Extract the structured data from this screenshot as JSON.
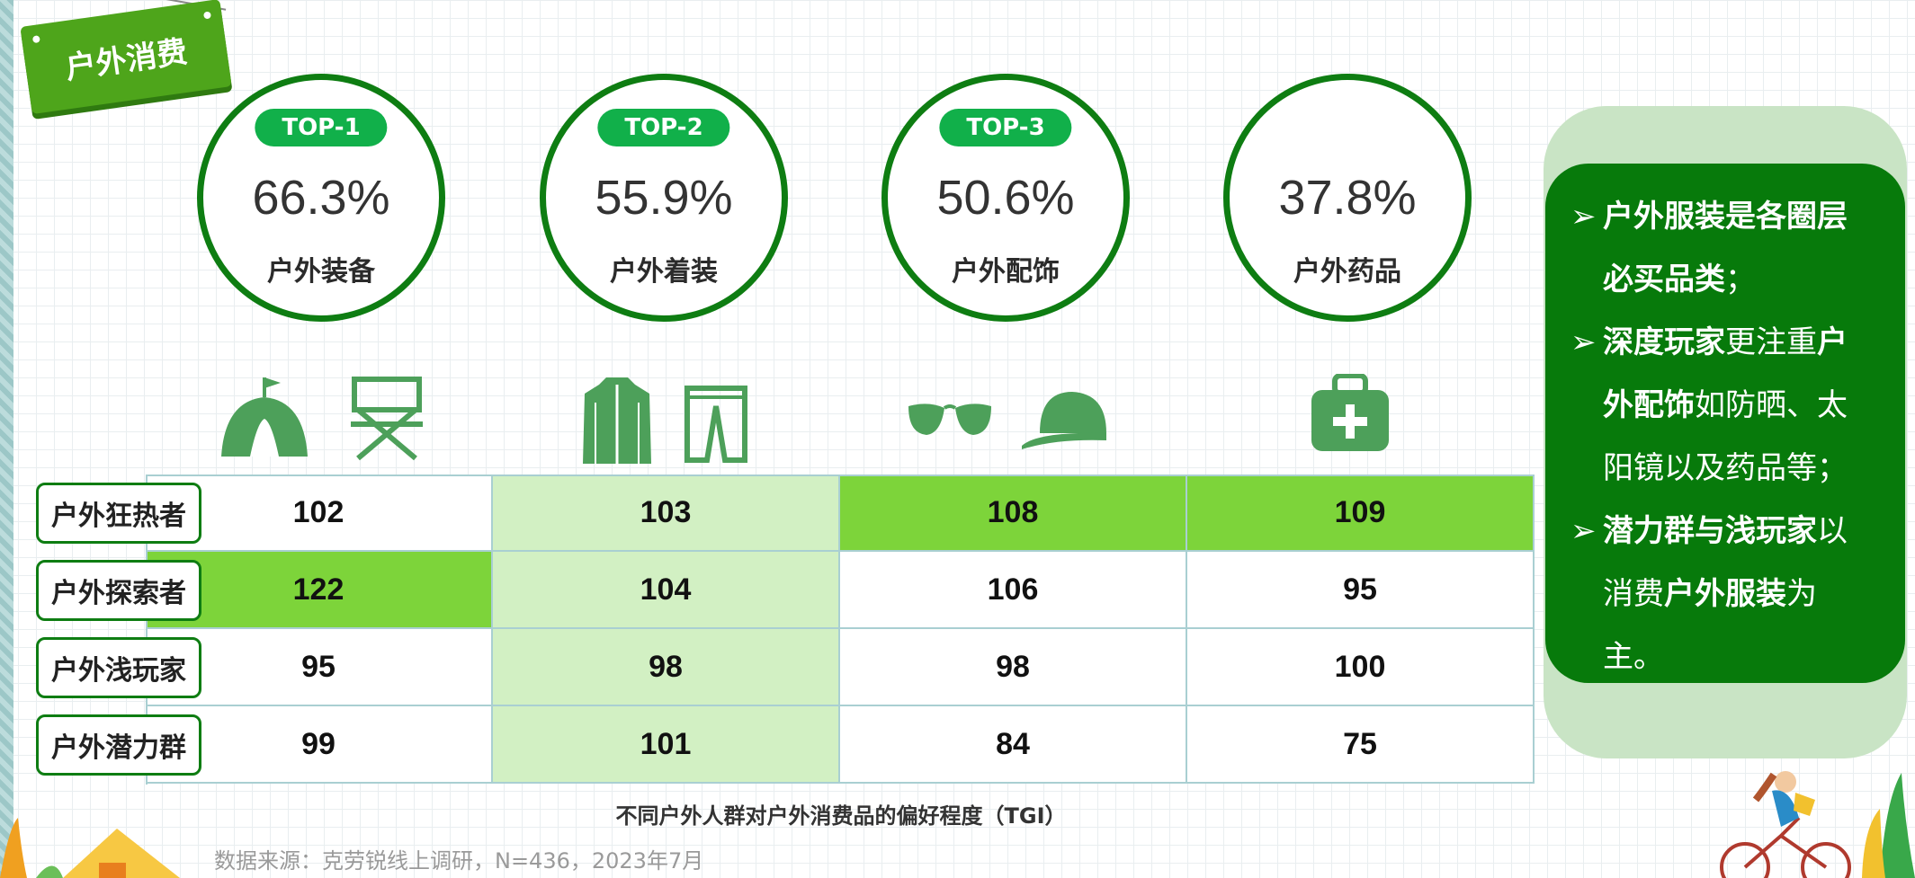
{
  "header": {
    "tag_label": "户外消费"
  },
  "categories": [
    {
      "rank": "TOP-1",
      "percent": "66.3%",
      "label": "户外装备"
    },
    {
      "rank": "TOP-2",
      "percent": "55.9%",
      "label": "户外着装"
    },
    {
      "rank": "TOP-3",
      "percent": "50.6%",
      "label": "户外配饰"
    },
    {
      "rank": "",
      "percent": "37.8%",
      "label": "户外药品"
    }
  ],
  "icons": [
    "tent-icon",
    "folding-chair-icon",
    "jacket-icon",
    "trousers-icon",
    "sunglasses-icon",
    "cap-icon",
    "first-aid-kit-icon"
  ],
  "table": {
    "rows": [
      {
        "label": "户外狂热者",
        "values": [
          "102",
          "103",
          "108",
          "109"
        ]
      },
      {
        "label": "户外探索者",
        "values": [
          "122",
          "104",
          "106",
          "95"
        ]
      },
      {
        "label": "户外浅玩家",
        "values": [
          "95",
          "98",
          "98",
          "100"
        ]
      },
      {
        "label": "户外潜力群",
        "values": [
          "99",
          "101",
          "84",
          "75"
        ]
      }
    ],
    "caption": "不同户外人群对户外消费品的偏好程度（TGI）"
  },
  "source": "数据来源：克劳锐线上调研，N=436，2023年7月",
  "insights": {
    "b1_bold": "户外服装是各圈层必买品类",
    "b1_rest": "；",
    "b2_bold1": "深度玩家",
    "b2_mid": "更注重",
    "b2_bold2": "户外配饰",
    "b2_rest": "如防晒、太阳镜以及药品等；",
    "b3_bold1": "潜力群与浅玩家",
    "b3_mid": "以消费",
    "b3_bold2": "户外服装",
    "b3_rest": "为主。"
  },
  "colors": {
    "primary_green": "#0e7d12",
    "pill_green": "#11b04a",
    "highlight_cell": "#7dd43a",
    "light_cell": "#d2f0c3",
    "icon_green": "#4da05a"
  }
}
